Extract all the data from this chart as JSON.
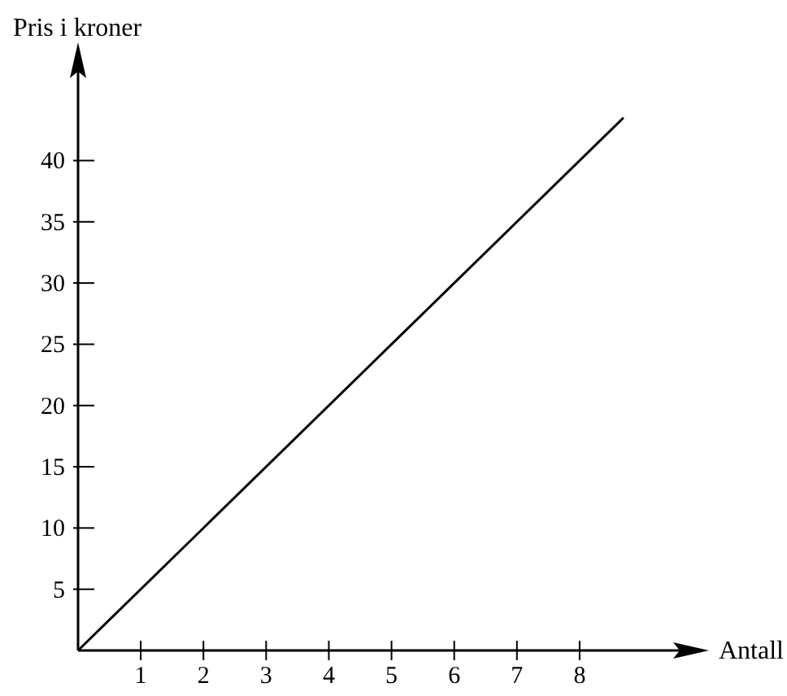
{
  "chart_data": {
    "type": "line",
    "xlabel": "Antall",
    "ylabel": "Pris i kroner",
    "x": [
      0,
      8.7
    ],
    "values": [
      0,
      43.5
    ],
    "color": "#000000",
    "xlim": [
      0,
      9.7
    ],
    "ylim": [
      0,
      47.8
    ],
    "xticks": [
      1,
      2,
      3,
      4,
      5,
      6,
      7,
      8
    ],
    "yticks": [
      5,
      10,
      15,
      20,
      25,
      30,
      35,
      40
    ],
    "grid": false,
    "line_style": "solid",
    "marker": "none"
  }
}
